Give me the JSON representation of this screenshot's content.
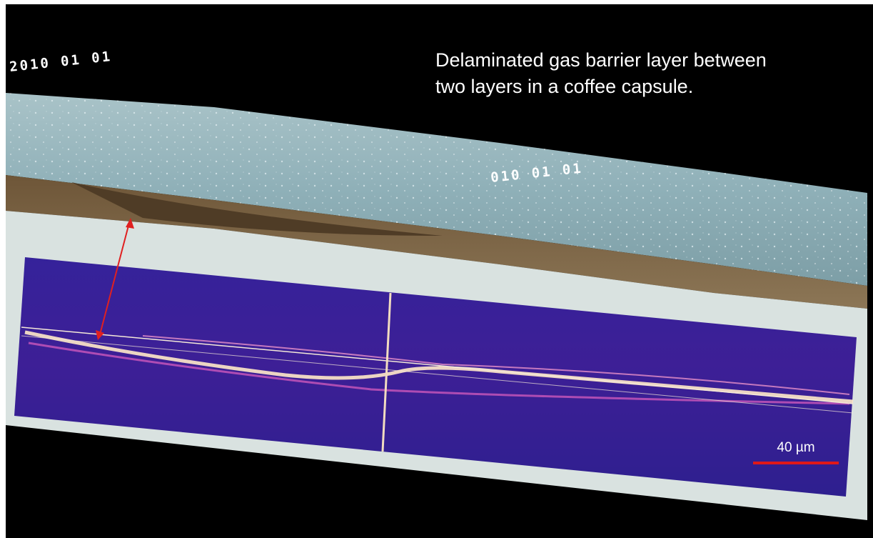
{
  "caption": {
    "lines": [
      "Delaminated gas barrier layer between",
      "two layers in a coffee capsule."
    ]
  },
  "timestamps": [
    "2010 01 01",
    "010 01 01"
  ],
  "scale_bar": {
    "label": "40 µm"
  }
}
